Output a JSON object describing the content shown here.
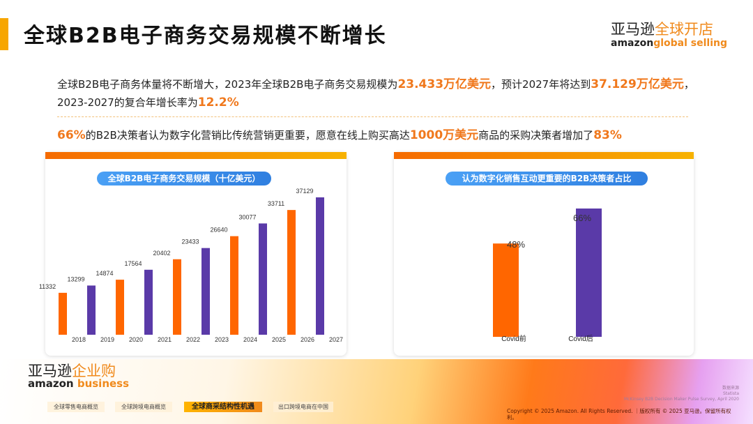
{
  "title": "全球B2B电子商务交易规模不断增长",
  "logo_top": {
    "cn1": "亚马逊",
    "cn2": "全球开店",
    "en1": "amazon",
    "en2": "global selling"
  },
  "para1": {
    "t1": "全球B2B电子商务体量将不断增大，2023年全球B2B电子商务交易规模为",
    "h1": "23.433万亿美元",
    "t2": "，预计2027年将达到",
    "h2": "37.129万亿美元",
    "t3": "，",
    "t4": "2023-2027的复合年增长率为",
    "h3": "12.2%"
  },
  "para2": {
    "h1": "66%",
    "t1": "的B2B决策者认为数字化营销比传统营销更重要，愿意在线上购买高达",
    "h2": "1000万美元",
    "t2": "商品的采购决策者增加了",
    "h3": "83%"
  },
  "colors": {
    "orange": "#ff6600",
    "purple": "#5a3aa8",
    "accent": "#f0781c"
  },
  "chart_data": [
    {
      "type": "bar",
      "title": "全球B2B电子商务交易规模（十亿美元）",
      "categories": [
        "2018",
        "2019",
        "2020",
        "2021",
        "2022",
        "2023",
        "2024",
        "2025",
        "2026",
        "2027"
      ],
      "values": [
        11332,
        13299,
        14874,
        17564,
        20402,
        23433,
        26640,
        30077,
        33711,
        37129
      ],
      "ylim": [
        0,
        37129
      ],
      "xlabel": "",
      "ylabel": ""
    },
    {
      "type": "bar",
      "title": "认为数字化销售互动更重要的B2B决策者占比",
      "categories": [
        "Covid前",
        "Covid后"
      ],
      "values": [
        48,
        66
      ],
      "value_labels": [
        "48%",
        "66%"
      ],
      "ylim": [
        0,
        66
      ],
      "xlabel": "",
      "ylabel": ""
    }
  ],
  "logo_bottom": {
    "cn1": "亚马逊",
    "cn2": "企业购",
    "en1": "amazon",
    "en2": "business"
  },
  "nav": [
    "全球零售电商概览",
    "全球跨境电商概览",
    "全球商采结构性机遇",
    "出口跨境电商在中国"
  ],
  "source": [
    "数据来源",
    "Statista",
    "McKinsey B2B Decision Maker Pulse Survey, April 2020"
  ],
  "copyright": "Copyright © 2025 Amazon. All Rights Reserved. ｜版权所有 © 2025 亚马逊。保留所有权利。"
}
